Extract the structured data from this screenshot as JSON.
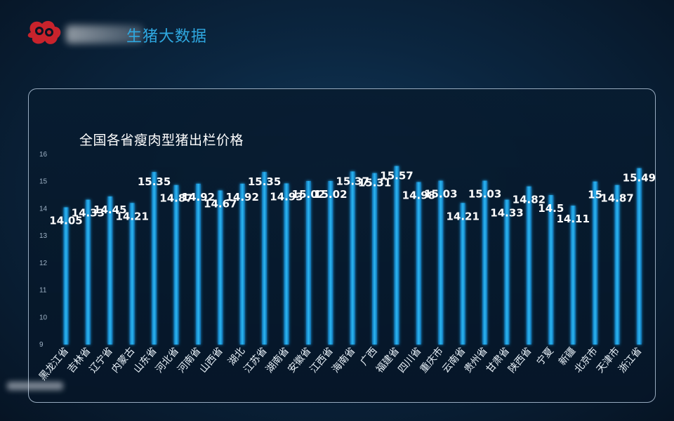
{
  "header": {
    "title": "生猪大数据",
    "logo_icon": "pig-logo-icon"
  },
  "chart_data": {
    "type": "bar",
    "title": "全国各省瘦肉型猪出栏价格",
    "xlabel": "",
    "ylabel": "",
    "ylim": [
      9,
      16
    ],
    "yticks": [
      9,
      10,
      11,
      12,
      13,
      14,
      15,
      16
    ],
    "grid": false,
    "bar_color": "#1ea6e6",
    "categories": [
      "黑龙江省",
      "吉林省",
      "辽宁省",
      "内蒙古",
      "山东省",
      "河北省",
      "河南省",
      "山西省",
      "湖北",
      "江苏省",
      "湖南省",
      "安徽省",
      "江西省",
      "海南省",
      "广西",
      "福建省",
      "四川省",
      "重庆市",
      "云南省",
      "贵州省",
      "甘肃省",
      "陕西省",
      "宁夏",
      "新疆",
      "北京市",
      "天津市",
      "浙江省"
    ],
    "values": [
      14.05,
      14.33,
      14.45,
      14.21,
      15.35,
      14.87,
      14.92,
      14.67,
      14.92,
      15.35,
      14.93,
      15.02,
      15.02,
      15.37,
      15.31,
      15.57,
      14.98,
      15.03,
      14.21,
      15.03,
      14.33,
      14.82,
      14.5,
      14.11,
      15,
      14.87,
      15.49
    ],
    "labels": [
      "14.05",
      "14.33",
      "14.45",
      "14.21",
      "15.35",
      "14.87",
      "14.92",
      "14.67",
      "14.92",
      "15.35",
      "14.93",
      "15.02",
      "15.02",
      "15.37",
      "15.31",
      "15.57",
      "14.98",
      "15.03",
      "14.21",
      "15.03",
      "14.33",
      "14.82",
      "14.5",
      "14.11",
      "15",
      "14.87",
      "15.49"
    ]
  }
}
